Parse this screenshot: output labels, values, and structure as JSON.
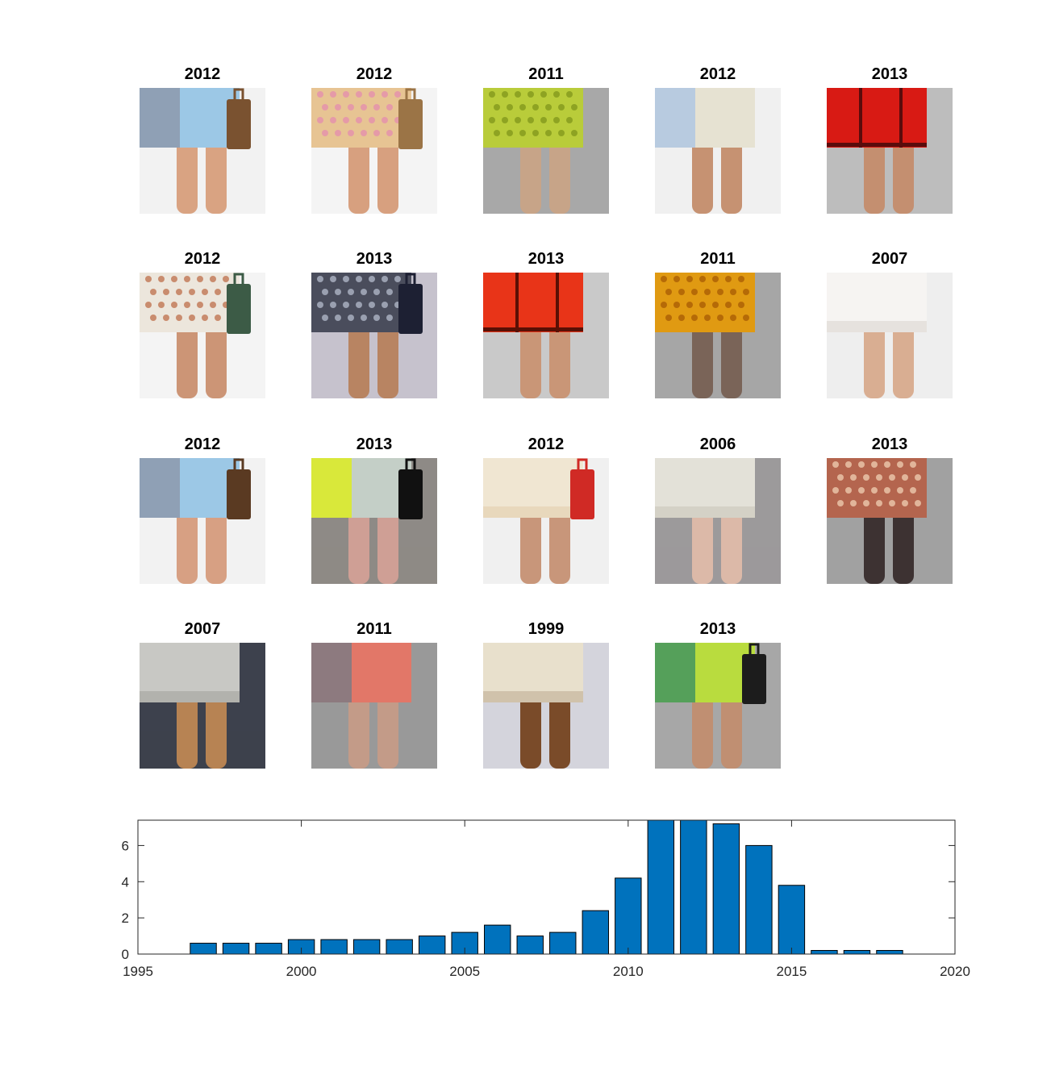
{
  "thumbnails": [
    {
      "year": "2012",
      "bg": "#f2f2f2",
      "fabric": "#9cc8e6",
      "accent": "#8fa0b5",
      "skin": "#d9a382",
      "bag": "#7a5230",
      "pattern": "split"
    },
    {
      "year": "2012",
      "bg": "#f4f4f4",
      "fabric": "#e7c493",
      "accent": "#e59aa8",
      "skin": "#d7a07f",
      "bag": "#9b7446",
      "pattern": "dots"
    },
    {
      "year": "2011",
      "bg": "#a8a8a8",
      "fabric": "#b9cc3a",
      "accent": "#8ea322",
      "skin": "#c7a488",
      "bag": "",
      "pattern": "dots"
    },
    {
      "year": "2012",
      "bg": "#f0f0f0",
      "fabric": "#e6e2d2",
      "accent": "#b8cbe0",
      "skin": "#c69272",
      "bag": "",
      "pattern": "split"
    },
    {
      "year": "2013",
      "bg": "#bdbdbd",
      "fabric": "#d81a14",
      "accent": "#5a0c0c",
      "skin": "#c48f70",
      "bag": "",
      "pattern": "lines"
    },
    {
      "year": "2012",
      "bg": "#f4f4f4",
      "fabric": "#ece6dc",
      "accent": "#c98c6e",
      "skin": "#cc9576",
      "bag": "#3c5b46",
      "pattern": "dots"
    },
    {
      "year": "2013",
      "bg": "#c6c2cd",
      "fabric": "#4a4d5c",
      "accent": "#9aa0b0",
      "skin": "#b88462",
      "bag": "#1d2033",
      "pattern": "dots"
    },
    {
      "year": "2013",
      "bg": "#c9c9c9",
      "fabric": "#e83418",
      "accent": "#5a1005",
      "skin": "#c99677",
      "bag": "",
      "pattern": "lines"
    },
    {
      "year": "2011",
      "bg": "#a6a6a6",
      "fabric": "#e09a12",
      "accent": "#b56a07",
      "skin": "#7a6458",
      "bag": "",
      "pattern": "dots"
    },
    {
      "year": "2007",
      "bg": "#eeeeee",
      "fabric": "#f6f4f2",
      "accent": "#dcd6d0",
      "skin": "#d9ae92",
      "bag": "",
      "pattern": "plain"
    },
    {
      "year": "2012",
      "bg": "#f2f2f2",
      "fabric": "#9cc8e6",
      "accent": "#8fa0b5",
      "skin": "#d7a083",
      "bag": "#5a3a22",
      "pattern": "split"
    },
    {
      "year": "2013",
      "bg": "#8e8a86",
      "fabric": "#c4cfc7",
      "accent": "#d9e83a",
      "skin": "#cf9f95",
      "bag": "#111111",
      "pattern": "split"
    },
    {
      "year": "2012",
      "bg": "#f0f0f0",
      "fabric": "#f0e6d2",
      "accent": "#e3cfae",
      "skin": "#c8967a",
      "bag": "#d02a25",
      "pattern": "plain"
    },
    {
      "year": "2006",
      "bg": "#9c9a9b",
      "fabric": "#e3e1d8",
      "accent": "#c9c6bb",
      "skin": "#dcb9a8",
      "bag": "",
      "pattern": "plain"
    },
    {
      "year": "2013",
      "bg": "#a1a1a1",
      "fabric": "#b4654e",
      "accent": "#e1b59a",
      "skin": "#3d3232",
      "bag": "",
      "pattern": "dots"
    },
    {
      "year": "2007",
      "bg": "#3d414d",
      "fabric": "#c8c8c4",
      "accent": "#a3a39f",
      "skin": "#b78353",
      "bag": "",
      "pattern": "plain"
    },
    {
      "year": "2011",
      "bg": "#999999",
      "fabric": "#e27768",
      "accent": "#8d7a7f",
      "skin": "#c39b88",
      "bag": "",
      "pattern": "split"
    },
    {
      "year": "1999",
      "bg": "#d4d4dc",
      "fabric": "#e8e0cc",
      "accent": "#bfae95",
      "skin": "#7a4b29",
      "bag": "",
      "pattern": "plain"
    },
    {
      "year": "2013",
      "bg": "#a7a7a7",
      "fabric": "#b9dc3e",
      "accent": "#55a05a",
      "skin": "#c08f72",
      "bag": "#1c1c1c",
      "pattern": "split"
    }
  ],
  "chart_data": {
    "type": "bar",
    "title": "",
    "xlabel": "",
    "ylabel": "",
    "x": [
      1997,
      1998,
      1999,
      2000,
      2001,
      2002,
      2003,
      2004,
      2005,
      2006,
      2007,
      2008,
      2009,
      2010,
      2011,
      2012,
      2013,
      2014,
      2015,
      2016,
      2017,
      2018
    ],
    "values": [
      0.6,
      0.6,
      0.6,
      0.8,
      0.8,
      0.8,
      0.8,
      1.0,
      1.2,
      1.6,
      1.0,
      1.2,
      2.4,
      4.2,
      7.5,
      7.5,
      7.2,
      6.0,
      3.8,
      0.2,
      0.2,
      0.2
    ],
    "xlim": [
      1995,
      2020
    ],
    "ylim": [
      0,
      7.4
    ],
    "xticks": [
      "1995",
      "2000",
      "2005",
      "2010",
      "2015",
      "2020"
    ],
    "yticks": [
      "0",
      "2",
      "4",
      "6"
    ],
    "bar_color": "#0072bd",
    "grid": false
  }
}
